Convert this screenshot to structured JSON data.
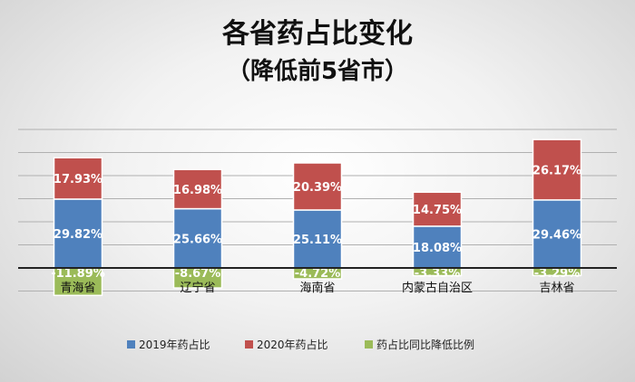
{
  "chart_data": {
    "type": "bar",
    "stacked": true,
    "title": "各省药占比变化",
    "subtitle": "（降低前5省市）",
    "categories": [
      "青海省",
      "辽宁省",
      "海南省",
      "内蒙古自治区",
      "吉林省"
    ],
    "series": [
      {
        "name": "2019年药占比",
        "values": [
          29.82,
          25.66,
          25.11,
          18.08,
          29.46
        ],
        "labels": [
          "29.82%",
          "25.66%",
          "25.11%",
          "18.08%",
          "29.46%"
        ],
        "color": "#4f81bd"
      },
      {
        "name": "2020年药占比",
        "values": [
          17.93,
          16.98,
          20.39,
          14.75,
          26.17
        ],
        "labels": [
          "17.93%",
          "16.98%",
          "20.39%",
          "14.75%",
          "26.17%"
        ],
        "color": "#c0504d"
      },
      {
        "name": "药占比同比降低比例",
        "values": [
          -11.89,
          -8.67,
          -4.72,
          -3.33,
          -3.29
        ],
        "labels": [
          "-11.89%",
          "-8.67%",
          "-4.72%",
          "-3.33%",
          "-3.29%"
        ],
        "color": "#9bbb59"
      }
    ],
    "ylim": [
      -15,
      60
    ],
    "grid": true,
    "legend": "bottom"
  }
}
